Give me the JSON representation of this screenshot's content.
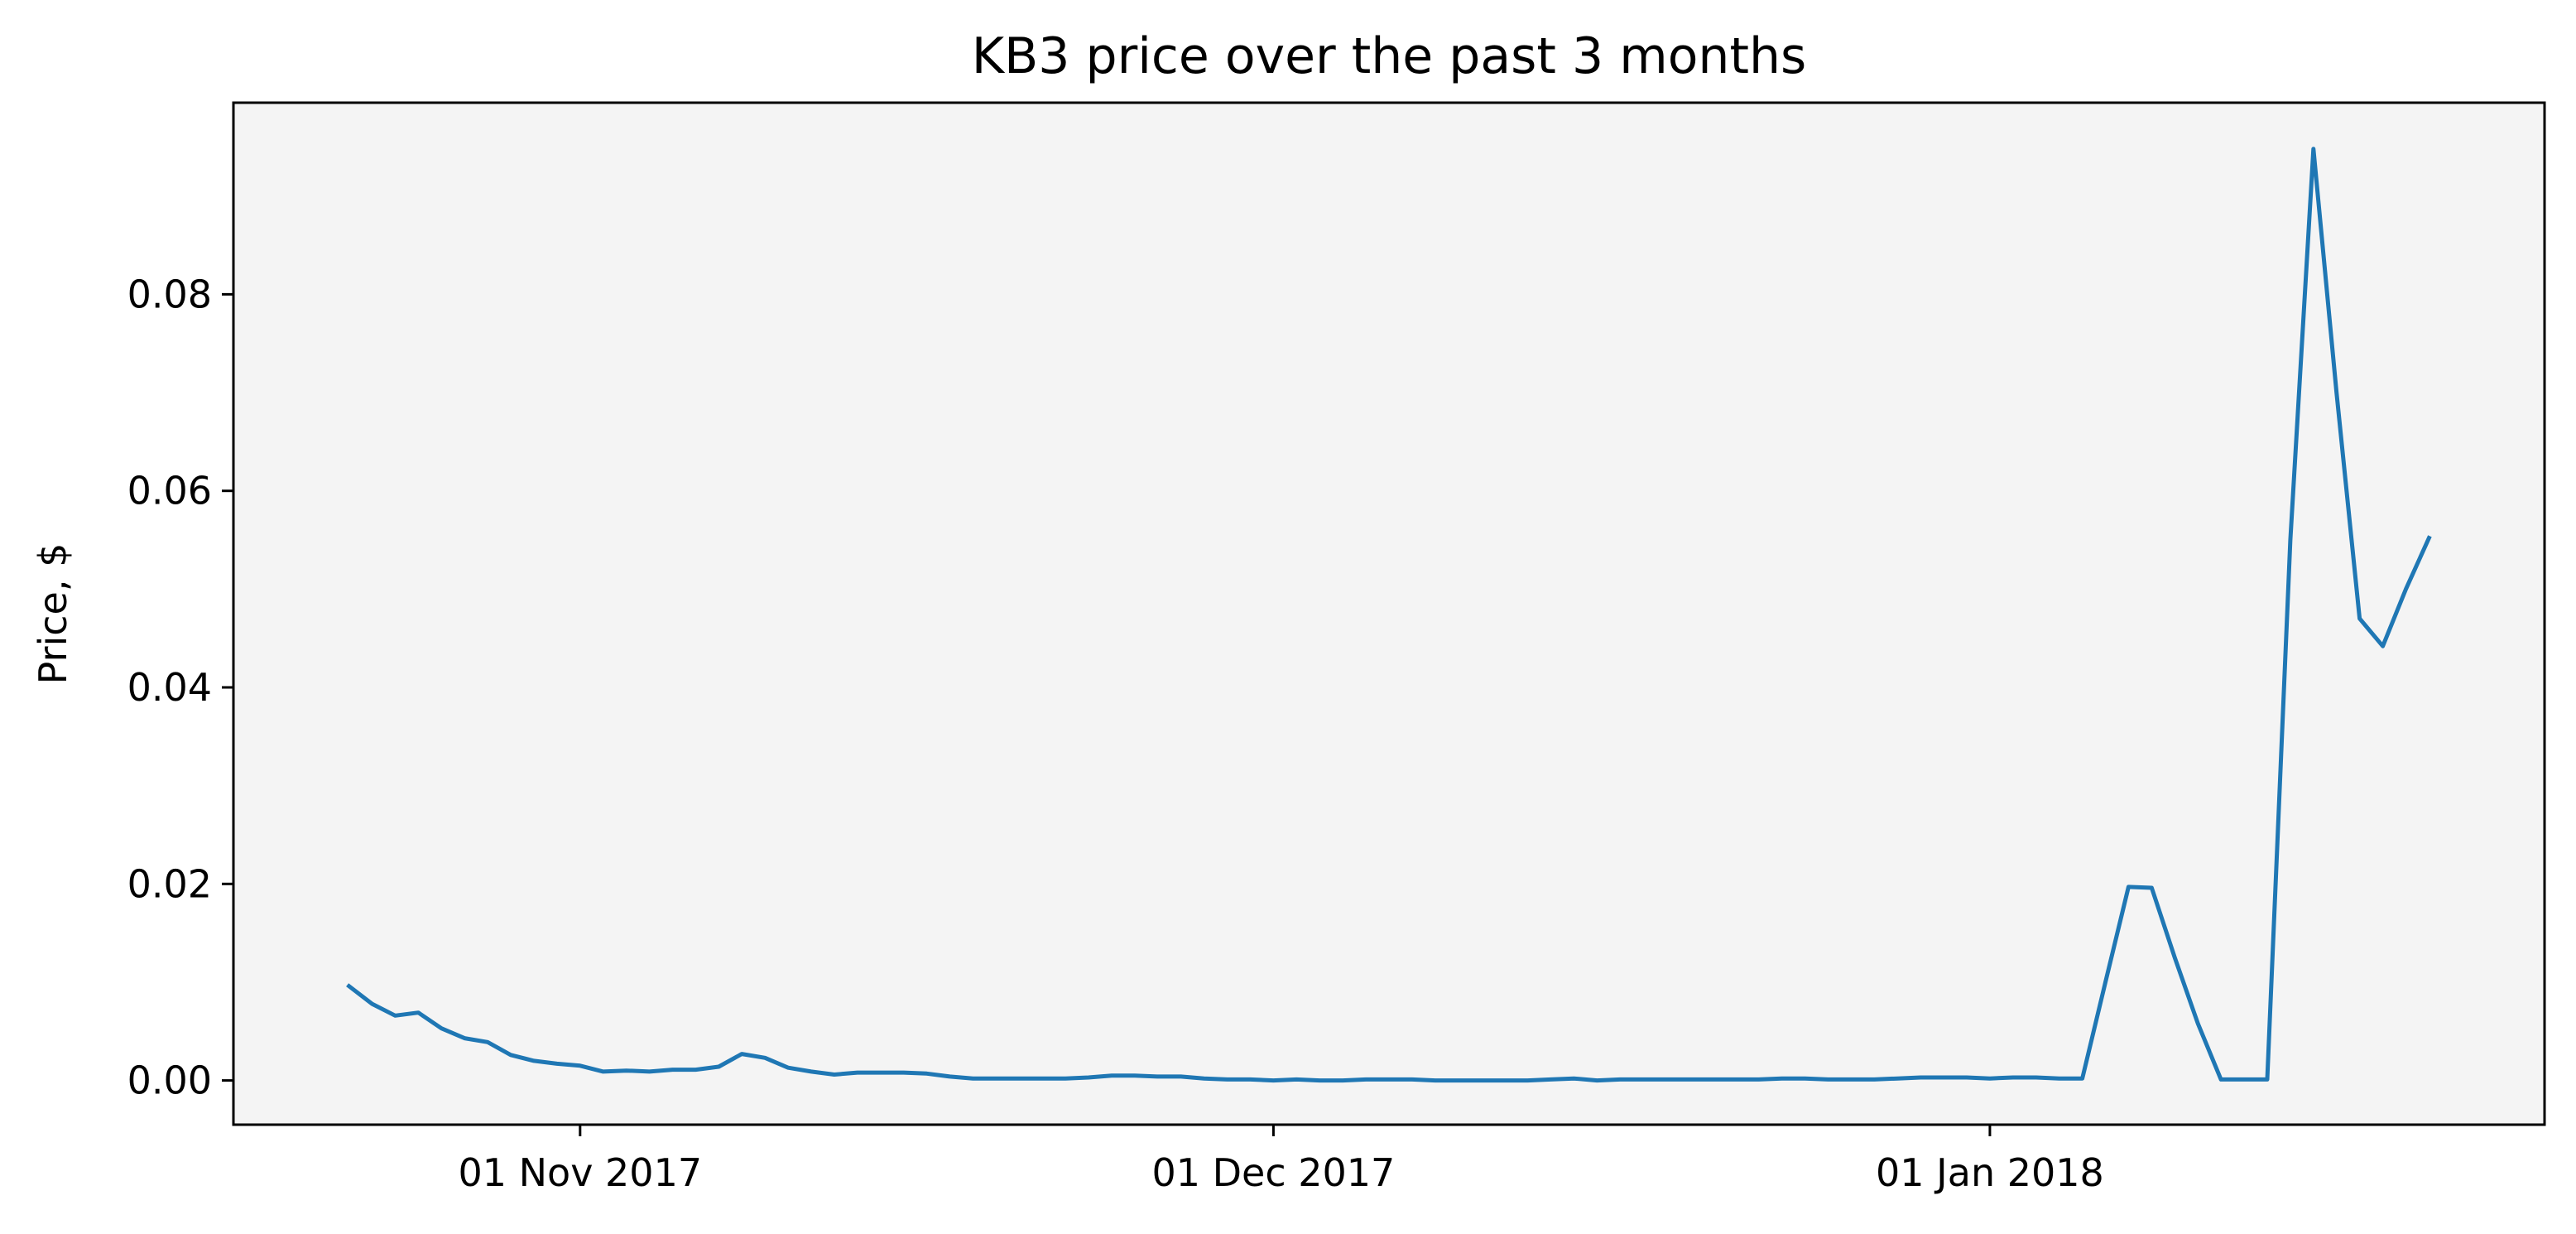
{
  "chart_data": {
    "type": "line",
    "title": "KB3 price over the past 3 months",
    "xlabel": "",
    "ylabel": "Price, $",
    "x_tick_labels": [
      {
        "date": "2017-11-01",
        "label": "01 Nov 2017"
      },
      {
        "date": "2017-12-01",
        "label": "01 Dec 2017"
      },
      {
        "date": "2018-01-01",
        "label": "01 Jan 2018"
      }
    ],
    "yticks": [
      {
        "value": 0.0,
        "label": "0.00"
      },
      {
        "value": 0.02,
        "label": "0.02"
      },
      {
        "value": 0.04,
        "label": "0.04"
      },
      {
        "value": 0.06,
        "label": "0.06"
      },
      {
        "value": 0.08,
        "label": "0.08"
      }
    ],
    "xlim": [
      "2017-10-17",
      "2018-01-25"
    ],
    "ylim": [
      -0.0045,
      0.0995
    ],
    "grid": false,
    "colors": {
      "series": "#1f77b4",
      "plot_background": "#f4f4f4",
      "axes": "#000000"
    },
    "series": [
      {
        "points": [
          [
            "2017-10-22",
            0.0096
          ],
          [
            "2017-10-23",
            0.0078
          ],
          [
            "2017-10-24",
            0.0066
          ],
          [
            "2017-10-25",
            0.0069
          ],
          [
            "2017-10-26",
            0.0053
          ],
          [
            "2017-10-27",
            0.0043
          ],
          [
            "2017-10-28",
            0.0039
          ],
          [
            "2017-10-29",
            0.0026
          ],
          [
            "2017-10-30",
            0.002
          ],
          [
            "2017-10-31",
            0.0017
          ],
          [
            "2017-11-01",
            0.0015
          ],
          [
            "2017-11-02",
            0.0009
          ],
          [
            "2017-11-03",
            0.001
          ],
          [
            "2017-11-04",
            0.0009
          ],
          [
            "2017-11-05",
            0.0011
          ],
          [
            "2017-11-06",
            0.0011
          ],
          [
            "2017-11-07",
            0.0014
          ],
          [
            "2017-11-08",
            0.0027
          ],
          [
            "2017-11-09",
            0.0023
          ],
          [
            "2017-11-10",
            0.0013
          ],
          [
            "2017-11-11",
            0.0009
          ],
          [
            "2017-11-12",
            0.0006
          ],
          [
            "2017-11-13",
            0.0008
          ],
          [
            "2017-11-14",
            0.0008
          ],
          [
            "2017-11-15",
            0.0008
          ],
          [
            "2017-11-16",
            0.0007
          ],
          [
            "2017-11-17",
            0.0004
          ],
          [
            "2017-11-18",
            0.0002
          ],
          [
            "2017-11-19",
            0.0002
          ],
          [
            "2017-11-20",
            0.0002
          ],
          [
            "2017-11-21",
            0.0002
          ],
          [
            "2017-11-22",
            0.0002
          ],
          [
            "2017-11-23",
            0.0003
          ],
          [
            "2017-11-24",
            0.0005
          ],
          [
            "2017-11-25",
            0.0005
          ],
          [
            "2017-11-26",
            0.0004
          ],
          [
            "2017-11-27",
            0.0004
          ],
          [
            "2017-11-28",
            0.0002
          ],
          [
            "2017-11-29",
            0.0001
          ],
          [
            "2017-11-30",
            0.0001
          ],
          [
            "2017-12-01",
            0.0
          ],
          [
            "2017-12-02",
            0.0001
          ],
          [
            "2017-12-03",
            0.0
          ],
          [
            "2017-12-04",
            0.0
          ],
          [
            "2017-12-05",
            0.0001
          ],
          [
            "2017-12-06",
            0.0001
          ],
          [
            "2017-12-07",
            0.0001
          ],
          [
            "2017-12-08",
            0.0
          ],
          [
            "2017-12-09",
            0.0
          ],
          [
            "2017-12-10",
            0.0
          ],
          [
            "2017-12-11",
            0.0
          ],
          [
            "2017-12-12",
            0.0
          ],
          [
            "2017-12-13",
            0.0001
          ],
          [
            "2017-12-14",
            0.0002
          ],
          [
            "2017-12-15",
            0.0
          ],
          [
            "2017-12-16",
            0.0001
          ],
          [
            "2017-12-17",
            0.0001
          ],
          [
            "2017-12-18",
            0.0001
          ],
          [
            "2017-12-19",
            0.0001
          ],
          [
            "2017-12-20",
            0.0001
          ],
          [
            "2017-12-21",
            0.0001
          ],
          [
            "2017-12-22",
            0.0001
          ],
          [
            "2017-12-23",
            0.0002
          ],
          [
            "2017-12-24",
            0.0002
          ],
          [
            "2017-12-25",
            0.0001
          ],
          [
            "2017-12-26",
            0.0001
          ],
          [
            "2017-12-27",
            0.0001
          ],
          [
            "2017-12-28",
            0.0002
          ],
          [
            "2017-12-29",
            0.0003
          ],
          [
            "2017-12-30",
            0.0003
          ],
          [
            "2017-12-31",
            0.0003
          ],
          [
            "2018-01-01",
            0.0002
          ],
          [
            "2018-01-02",
            0.0003
          ],
          [
            "2018-01-03",
            0.0003
          ],
          [
            "2018-01-04",
            0.0002
          ],
          [
            "2018-01-05",
            0.0002
          ],
          [
            "2018-01-06",
            0.01
          ],
          [
            "2018-01-07",
            0.0197
          ],
          [
            "2018-01-08",
            0.0196
          ],
          [
            "2018-01-09",
            0.0125
          ],
          [
            "2018-01-10",
            0.0058
          ],
          [
            "2018-01-11",
            0.0001
          ],
          [
            "2018-01-12",
            0.0001
          ],
          [
            "2018-01-13",
            0.0001
          ],
          [
            "2018-01-14",
            0.055
          ],
          [
            "2018-01-15",
            0.0948
          ],
          [
            "2018-01-16",
            0.07
          ],
          [
            "2018-01-17",
            0.047
          ],
          [
            "2018-01-18",
            0.0442
          ],
          [
            "2018-01-19",
            0.05
          ],
          [
            "2018-01-20",
            0.0552
          ]
        ]
      }
    ]
  }
}
